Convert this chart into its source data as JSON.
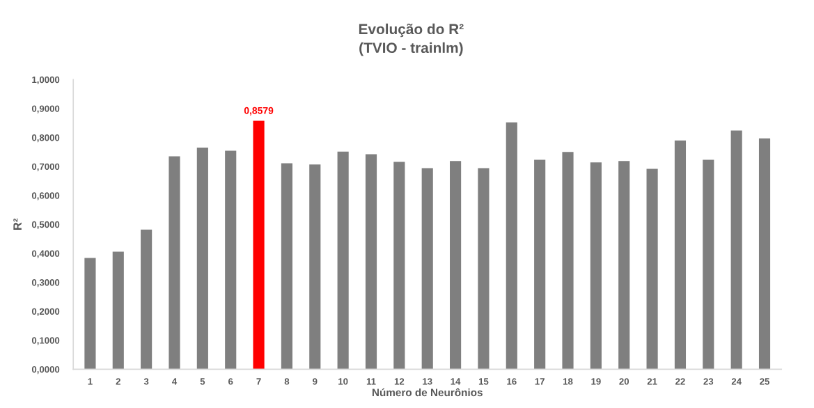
{
  "chart_data": {
    "type": "bar",
    "title": "Evolução do R²\n(TVIO - trainlm)",
    "xlabel": "Número de Neurônios",
    "ylabel": "R²",
    "categories": [
      "1",
      "2",
      "3",
      "4",
      "5",
      "6",
      "7",
      "8",
      "9",
      "10",
      "11",
      "12",
      "13",
      "14",
      "15",
      "16",
      "17",
      "18",
      "19",
      "20",
      "21",
      "22",
      "23",
      "24",
      "25"
    ],
    "values": [
      0.384,
      0.406,
      0.482,
      0.735,
      0.765,
      0.754,
      0.8579,
      0.711,
      0.707,
      0.751,
      0.742,
      0.716,
      0.694,
      0.719,
      0.694,
      0.852,
      0.723,
      0.75,
      0.714,
      0.719,
      0.692,
      0.79,
      0.723,
      0.824,
      0.797
    ],
    "colors": [
      "#7f7f7f",
      "#7f7f7f",
      "#7f7f7f",
      "#7f7f7f",
      "#7f7f7f",
      "#7f7f7f",
      "#ff0000",
      "#7f7f7f",
      "#7f7f7f",
      "#7f7f7f",
      "#7f7f7f",
      "#7f7f7f",
      "#7f7f7f",
      "#7f7f7f",
      "#7f7f7f",
      "#7f7f7f",
      "#7f7f7f",
      "#7f7f7f",
      "#7f7f7f",
      "#7f7f7f",
      "#7f7f7f",
      "#7f7f7f",
      "#7f7f7f",
      "#7f7f7f",
      "#7f7f7f"
    ],
    "value_labels": [
      null,
      null,
      null,
      null,
      null,
      null,
      "0,8579",
      null,
      null,
      null,
      null,
      null,
      null,
      null,
      null,
      null,
      null,
      null,
      null,
      null,
      null,
      null,
      null,
      null,
      null
    ],
    "ylim": [
      0,
      1
    ],
    "yticks": [
      {
        "value": 0,
        "label": "0,0000"
      },
      {
        "value": 0.1,
        "label": "0,1000"
      },
      {
        "value": 0.2,
        "label": "0,2000"
      },
      {
        "value": 0.3,
        "label": "0,3000"
      },
      {
        "value": 0.4,
        "label": "0,4000"
      },
      {
        "value": 0.5,
        "label": "0,5000"
      },
      {
        "value": 0.6,
        "label": "0,6000"
      },
      {
        "value": 0.7,
        "label": "0,7000"
      },
      {
        "value": 0.8,
        "label": "0,8000"
      },
      {
        "value": 0.9,
        "label": "0,9000"
      },
      {
        "value": 1,
        "label": "1,0000"
      }
    ]
  }
}
